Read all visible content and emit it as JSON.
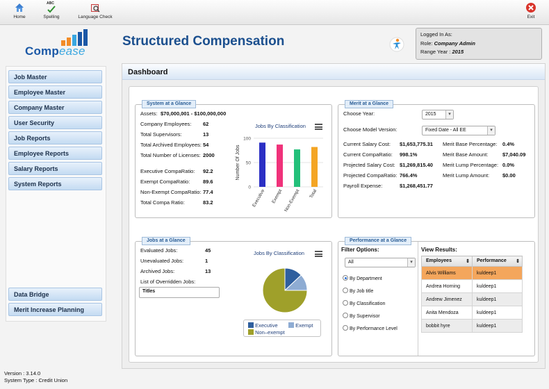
{
  "toolbar": {
    "home_label": "Home",
    "spelling_label": "Spelling",
    "spelling_icon_text": "ABC",
    "language_label": "Language Check",
    "exit_label": "Exit"
  },
  "header": {
    "logo_main": "Comp",
    "logo_accent": "ease",
    "title": "Structured Compensation",
    "login": {
      "logged_in_label": "Logged In As:",
      "role_label": "Role:",
      "role_value": "Company Admin",
      "range_label": "Range Year :",
      "range_value": "2015"
    }
  },
  "sidebar": {
    "items": [
      "Job Master",
      "Employee Master",
      "Company Master",
      "User Security",
      "Job Reports",
      "Employee Reports",
      "Salary Reports",
      "System Reports"
    ],
    "bottom_items": [
      "Data Bridge",
      "Merit Increase Planning"
    ],
    "version": "Version : 3.14.0",
    "system_type": "System Type : Credit Union"
  },
  "dashboard": {
    "title": "Dashboard",
    "system": {
      "tab": "System at a Glance",
      "assets_label": "Assets:",
      "assets_value": "$70,000,001 - $100,000,000",
      "stats": [
        {
          "label": "Company Employees:",
          "value": "62"
        },
        {
          "label": "Total Supervisors:",
          "value": "13"
        },
        {
          "label": "Total Archived Employees:",
          "value": "54"
        },
        {
          "label": "Total Number of Licenses:",
          "value": "2000"
        }
      ],
      "ratios": [
        {
          "label": "Executive CompaRatio:",
          "value": "92.2"
        },
        {
          "label": "Exempt CompaRatio:",
          "value": "89.6"
        },
        {
          "label": "Non-Exempt CompaRatio:",
          "value": "77.4"
        },
        {
          "label": "Total Compa Ratio:",
          "value": "83.2"
        }
      ]
    },
    "merit": {
      "tab": "Merit at a Glance",
      "choose_year_label": "Choose Year:",
      "year_value": "2015",
      "model_label": "Choose Model Version:",
      "model_value": "Fixed Date - All EE",
      "left": [
        {
          "label": "Current Salary Cost:",
          "value": "$1,653,775.31"
        },
        {
          "label": "Current CompaRatio:",
          "value": "998.1%"
        },
        {
          "label": "Projected Salary Cost:",
          "value": "$1,269,815.40"
        },
        {
          "label": "Projected CompaRatio:",
          "value": "766.4%"
        },
        {
          "label": "Payroll Expense:",
          "value": "$1,268,451.77"
        }
      ],
      "right": [
        {
          "label": "Merit Base Percentage:",
          "value": "0.4%"
        },
        {
          "label": "Merit Base Amount:",
          "value": "$7,040.09"
        },
        {
          "label": "Merit Lump Percentage:",
          "value": "0.0%"
        },
        {
          "label": "Merit Lump Amount:",
          "value": "$0.00"
        }
      ]
    },
    "jobs": {
      "tab": "Jobs at a Glance",
      "stats": [
        {
          "label": "Evaluated Jobs:",
          "value": "45"
        },
        {
          "label": "Unevaluated Jobs:",
          "value": "1"
        },
        {
          "label": "Archived Jobs:",
          "value": "13"
        }
      ],
      "overridden_label": "List of Overridden Jobs:",
      "overridden_select": "Titles"
    },
    "performance": {
      "tab": "Performance at a Glance",
      "filter_label": "Filter Options:",
      "filter_value": "All",
      "options": [
        "By Department",
        "By Job title",
        "By Classification",
        "By Supervisor",
        "By Performance Level"
      ],
      "selected_option": 0,
      "results_label": "View Results:",
      "columns": [
        "Employees",
        "Performance"
      ],
      "rows": [
        [
          "Alvis Williams",
          "kuldeep1"
        ],
        [
          "Andrea Horning",
          "kuldeep1"
        ],
        [
          "Andrew Jimenez",
          "kuldeep1"
        ],
        [
          "Anita Mendoza",
          "kuldeep1"
        ],
        [
          "bobbit hyre",
          "kuldeep1"
        ]
      ]
    }
  },
  "chart_data": [
    {
      "type": "bar",
      "title": "Jobs By Classification",
      "ylabel": "Number Of Jobs",
      "xlabel": "",
      "categories": [
        "Executive",
        "Exempt",
        "Non-Exempt",
        "Total"
      ],
      "values": [
        91,
        87,
        77,
        82
      ],
      "colors": [
        "#2b2fc4",
        "#f0327a",
        "#23c07a",
        "#f4a524"
      ],
      "ylim": [
        0,
        100
      ],
      "yticks": [
        0,
        50,
        100
      ],
      "grid": true
    },
    {
      "type": "pie",
      "title": "Jobs By Classification",
      "categories": [
        "Executive",
        "Exempt",
        "Non–exempt"
      ],
      "values": [
        13,
        12,
        75
      ],
      "colors": [
        "#2f5f9e",
        "#8eacd3",
        "#9fa02a"
      ],
      "legend": "bottom"
    }
  ]
}
